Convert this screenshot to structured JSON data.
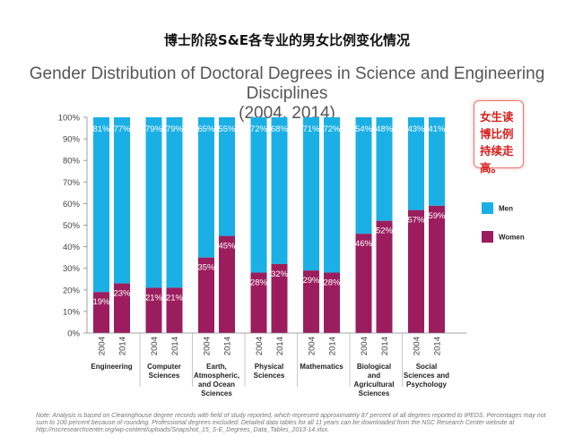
{
  "header": {
    "chinese_title": "博士阶段S&E各专业的男女比例变化情况",
    "chart_title_line1": "Gender Distribution of Doctoral Degrees in Science and Engineering Disciplines",
    "chart_title_line2": "(2004, 2014)"
  },
  "callout": {
    "text": "女生读博比例持续走高。"
  },
  "note": {
    "text": "Note: Analysis is based on Clearinghouse degree records with field of study reported, which represent approximately 87 percent of all degrees reported to IPEDS. Percentages may not sum to 100 percent because of rounding. Professional degrees excluded. Detailed data tables for all 11 years can be downloaded from the NSC Research Center website at http://nscresearchcenter.org/wp-content/uploads/Snapshot_15_S-E_Degrees_Data_Tables_2013-14.xlsx."
  },
  "colors": {
    "men": "#1ab0e6",
    "women": "#9b1d5e"
  },
  "chart_data": {
    "type": "bar",
    "stacked": true,
    "ylim": [
      0,
      100
    ],
    "yticks": [
      "0%",
      "10%",
      "20%",
      "30%",
      "40%",
      "50%",
      "60%",
      "70%",
      "80%",
      "90%",
      "100%"
    ],
    "bar_labels": [
      "2004",
      "2014"
    ],
    "legend": {
      "position": "right"
    },
    "groups": [
      {
        "name": "Engineering",
        "women": [
          19,
          23
        ],
        "men": [
          81,
          77
        ],
        "women_labels": [
          "19%",
          "23%"
        ],
        "men_labels": [
          "81%",
          "77%"
        ]
      },
      {
        "name": "Computer Sciences",
        "women": [
          21,
          21
        ],
        "men": [
          79,
          79
        ],
        "women_labels": [
          "21%",
          "21%"
        ],
        "men_labels": [
          "79%",
          "79%"
        ]
      },
      {
        "name": "Earth, Atmospheric, and Ocean Sciences",
        "women": [
          35,
          45
        ],
        "men": [
          65,
          55
        ],
        "women_labels": [
          "35%",
          "45%"
        ],
        "men_labels": [
          "65%",
          "55%"
        ]
      },
      {
        "name": "Physical Sciences",
        "women": [
          28,
          32
        ],
        "men": [
          72,
          68
        ],
        "women_labels": [
          "28%",
          "32%"
        ],
        "men_labels": [
          "72%",
          "68%"
        ]
      },
      {
        "name": "Mathematics",
        "women": [
          29,
          28
        ],
        "men": [
          71,
          72
        ],
        "women_labels": [
          "29%",
          "28%"
        ],
        "men_labels": [
          "71%",
          "72%"
        ]
      },
      {
        "name": "Biological and Agricultural Sciences",
        "women": [
          46,
          52
        ],
        "men": [
          54,
          48
        ],
        "women_labels": [
          "46%",
          "52%"
        ],
        "men_labels": [
          "54%",
          "48%"
        ]
      },
      {
        "name": "Social Sciences and Psychology",
        "women": [
          57,
          59
        ],
        "men": [
          43,
          41
        ],
        "women_labels": [
          "57%",
          "59%"
        ],
        "men_labels": [
          "43%",
          "41%"
        ]
      }
    ],
    "series": [
      {
        "name": "Men",
        "color": "#1ab0e6"
      },
      {
        "name": "Women",
        "color": "#9b1d5e"
      }
    ]
  }
}
